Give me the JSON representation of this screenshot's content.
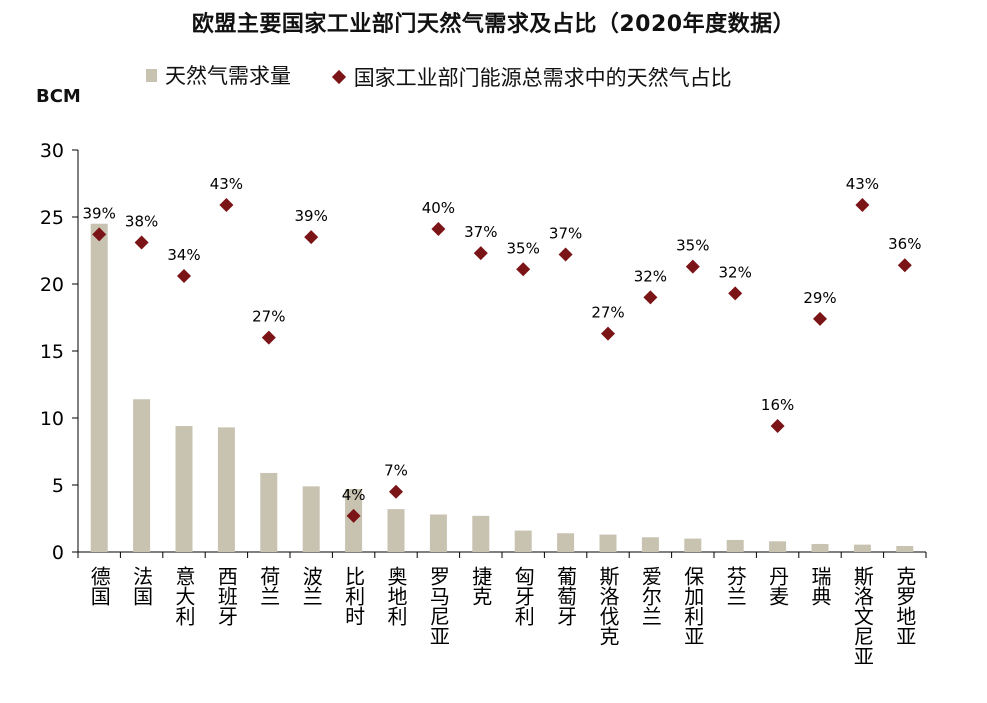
{
  "title": "欧盟主要国家工业部门天然气需求及占比（2020年度数据）",
  "unit_label": "BCM",
  "legend": {
    "bar_label": "天然气需求量",
    "marker_label": "国家工业部门能源总需求中的天然气占比"
  },
  "colors": {
    "bar": "#c8c3b0",
    "marker": "#7a1417",
    "axis": "#000000"
  },
  "chart_data": {
    "type": "bar",
    "title": "欧盟主要国家工业部门天然气需求及占比（2020年度数据）",
    "ylabel": "BCM",
    "ylim": [
      0,
      30
    ],
    "yticks": [
      0,
      5,
      10,
      15,
      20,
      25,
      30
    ],
    "grid": false,
    "legend_position": "top",
    "categories": [
      "德国",
      "法国",
      "意大利",
      "西班牙",
      "荷兰",
      "波兰",
      "比利时",
      "奥地利",
      "罗马尼亚",
      "捷克",
      "匈牙利",
      "葡萄牙",
      "斯洛伐克",
      "爱尔兰",
      "保加利亚",
      "芬兰",
      "丹麦",
      "瑞典",
      "斯洛文尼亚",
      "克罗地亚"
    ],
    "series": [
      {
        "name": "天然气需求量",
        "type": "bar",
        "values": [
          24.5,
          11.4,
          9.4,
          9.3,
          5.9,
          4.9,
          4.7,
          3.2,
          2.8,
          2.7,
          1.6,
          1.4,
          1.3,
          1.1,
          1.0,
          0.9,
          0.8,
          0.6,
          0.55,
          0.45
        ]
      },
      {
        "name": "国家工业部门能源总需求中的天然气占比",
        "type": "scatter",
        "marker": "diamond",
        "plotted_on_left_axis": [
          23.7,
          23.1,
          20.6,
          25.9,
          16.0,
          23.5,
          2.7,
          4.5,
          24.1,
          22.3,
          21.1,
          22.2,
          16.3,
          19.0,
          21.3,
          19.3,
          9.4,
          17.4,
          25.9,
          21.4
        ],
        "labels": [
          "39%",
          "38%",
          "34%",
          "43%",
          "27%",
          "39%",
          "4%",
          "7%",
          "40%",
          "37%",
          "35%",
          "37%",
          "27%",
          "32%",
          "35%",
          "32%",
          "16%",
          "29%",
          "43%",
          "36%"
        ]
      }
    ]
  }
}
